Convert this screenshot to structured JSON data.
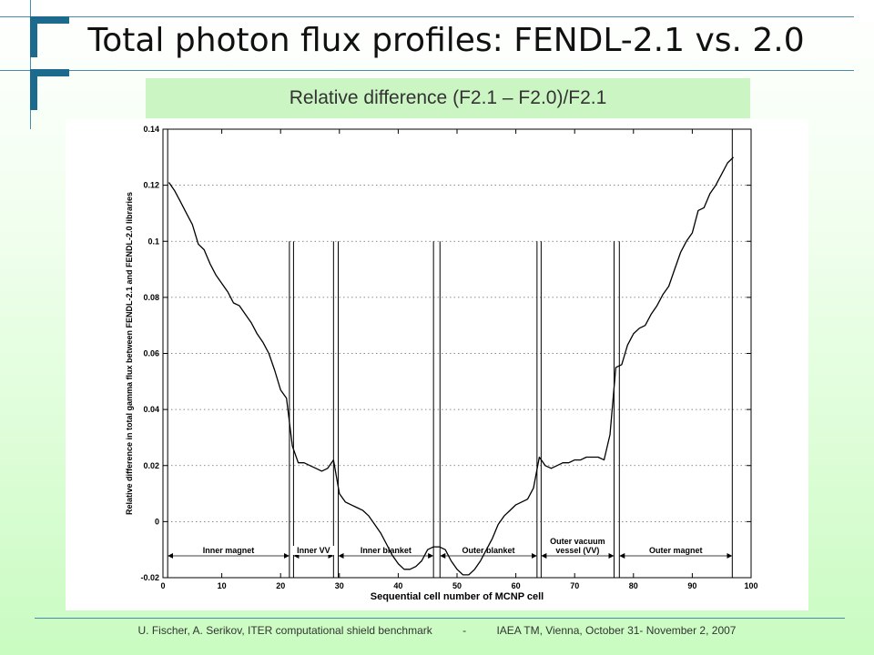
{
  "slide": {
    "title": "Total photon flux profiles: FENDL-2.1 vs. 2.0",
    "subtitle": "Relative difference (F2.1 – F2.0)/F2.1",
    "footer_left": "U. Fischer, A. Serikov, ITER computational shield benchmark",
    "footer_sep": "-",
    "footer_right": "IAEA TM, Vienna, October 31- November 2, 2007",
    "colors": {
      "accent": "#1d6a8f",
      "rule": "#4a8bad",
      "subtitle_bg": "#ccf5c4"
    }
  },
  "chart_data": {
    "type": "line",
    "title": "",
    "xlabel": "Sequential cell number of MCNP cell",
    "ylabel": "Relative difference in total gamma flux between FENDL-2.1 and FENDL-2.0 libraries",
    "xlim": [
      0,
      100
    ],
    "ylim": [
      -0.02,
      0.14
    ],
    "x_ticks": [
      0,
      10,
      20,
      30,
      40,
      50,
      60,
      70,
      80,
      90,
      100
    ],
    "y_ticks": [
      -0.02,
      0,
      0.02,
      0.04,
      0.06,
      0.08,
      0.1,
      0.12,
      0.14
    ],
    "y_tick_labels": [
      "-0.02",
      "0",
      "0.02",
      "0.04",
      "0.06",
      "0.08",
      "0.1",
      "0.12",
      "0.14"
    ],
    "grid": "horizontal dotted",
    "series": [
      {
        "name": "",
        "x": [
          1,
          2,
          3,
          4,
          5,
          6,
          7,
          8,
          9,
          10,
          11,
          12,
          13,
          14,
          15,
          16,
          17,
          18,
          19,
          20,
          21,
          22,
          23,
          24,
          25,
          26,
          27,
          28,
          29,
          30,
          31,
          32,
          33,
          34,
          35,
          36,
          37,
          38,
          39,
          40,
          41,
          42,
          43,
          44,
          45,
          46,
          47,
          48,
          49,
          50,
          51,
          52,
          53,
          54,
          55,
          56,
          57,
          58,
          59,
          60,
          61,
          62,
          63,
          64,
          65,
          66,
          67,
          68,
          69,
          70,
          71,
          72,
          73,
          74,
          75,
          76,
          77,
          78,
          79,
          80,
          81,
          82,
          83,
          84,
          85,
          86,
          87,
          88,
          89,
          90,
          91,
          92,
          93,
          94,
          95,
          96,
          97
        ],
        "y": [
          0.121,
          0.118,
          0.114,
          0.11,
          0.106,
          0.099,
          0.097,
          0.092,
          0.088,
          0.085,
          0.082,
          0.078,
          0.077,
          0.074,
          0.071,
          0.067,
          0.064,
          0.06,
          0.054,
          0.047,
          0.044,
          0.027,
          0.021,
          0.021,
          0.02,
          0.019,
          0.018,
          0.019,
          0.022,
          0.01,
          0.007,
          0.006,
          0.005,
          0.004,
          0.002,
          -0.001,
          -0.004,
          -0.008,
          -0.012,
          -0.015,
          -0.017,
          -0.017,
          -0.016,
          -0.014,
          -0.01,
          -0.009,
          -0.009,
          -0.01,
          -0.014,
          -0.017,
          -0.019,
          -0.019,
          -0.017,
          -0.014,
          -0.01,
          -0.006,
          -0.001,
          0.002,
          0.004,
          0.006,
          0.007,
          0.008,
          0.012,
          0.023,
          0.02,
          0.019,
          0.02,
          0.021,
          0.021,
          0.022,
          0.022,
          0.023,
          0.023,
          0.023,
          0.022,
          0.031,
          0.055,
          0.056,
          0.063,
          0.067,
          0.069,
          0.07,
          0.074,
          0.077,
          0.081,
          0.084,
          0.09,
          0.096,
          0.1,
          0.103,
          0.111,
          0.112,
          0.117,
          0.12,
          0.124,
          0.128,
          0.13
        ]
      }
    ],
    "boundaries": [
      {
        "x": 0.8,
        "top": 0.14
      },
      {
        "x": 21.5,
        "top": 0.1
      },
      {
        "x": 22.2,
        "top": 0.1
      },
      {
        "x": 29.0,
        "top": 0.1
      },
      {
        "x": 29.8,
        "top": 0.1
      },
      {
        "x": 46.0,
        "top": 0.1
      },
      {
        "x": 47.1,
        "top": 0.1
      },
      {
        "x": 63.6,
        "top": 0.1
      },
      {
        "x": 64.3,
        "top": 0.1
      },
      {
        "x": 76.7,
        "top": 0.1
      },
      {
        "x": 77.6,
        "top": 0.1
      },
      {
        "x": 96.8,
        "top": 0.14
      }
    ],
    "regions": [
      {
        "label": "Inner magnet",
        "x_from": 0.8,
        "x_to": 21.5
      },
      {
        "label": "Inner VV",
        "x_from": 22.2,
        "x_to": 29.0
      },
      {
        "label": "Inner blanket",
        "x_from": 29.8,
        "x_to": 46.0
      },
      {
        "label": "Outer blanket",
        "x_from": 47.1,
        "x_to": 63.6
      },
      {
        "label": "Outer vacuum vessel (VV)",
        "lines": [
          "Outer vacuum",
          "vessel (VV)"
        ],
        "x_from": 64.3,
        "x_to": 76.7
      },
      {
        "label": "Outer magnet",
        "x_from": 77.6,
        "x_to": 96.8
      }
    ],
    "region_arrow_y": -0.0122
  }
}
